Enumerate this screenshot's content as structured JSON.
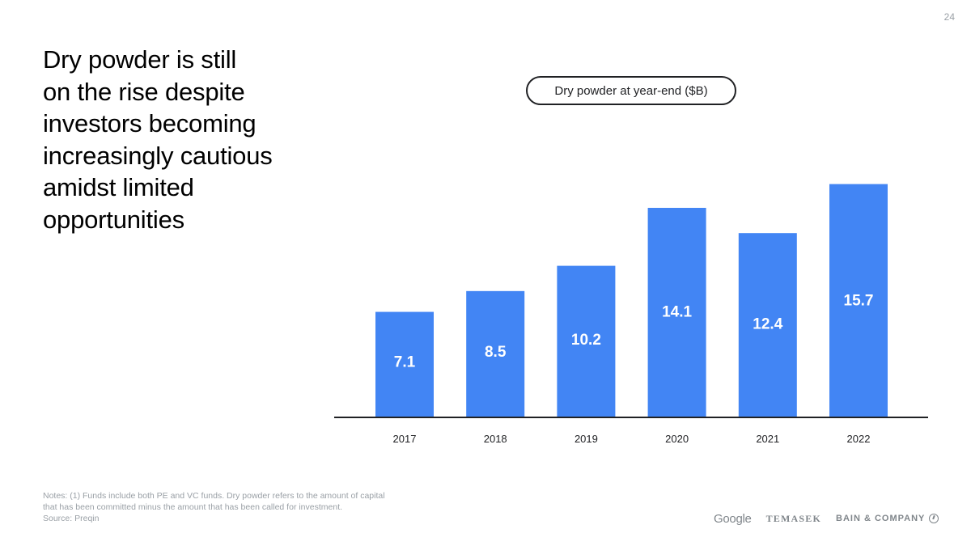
{
  "page_number": "24",
  "headline": "Dry powder is still\non the rise despite\ninvestors becoming\nincreasingly cautious\namidst limited\nopportunities",
  "legend_label": "Dry powder at year-end ($B)",
  "chart_data": {
    "type": "bar",
    "categories": [
      "2017",
      "2018",
      "2019",
      "2020",
      "2021",
      "2022"
    ],
    "values": [
      7.1,
      8.5,
      10.2,
      14.1,
      12.4,
      15.7
    ],
    "data_labels": [
      "7.1",
      "8.5",
      "10.2",
      "14.1",
      "12.4",
      "15.7"
    ],
    "title": "",
    "legend": "Dry powder at year-end ($B)",
    "xlabel": "",
    "ylabel": "",
    "ylim": [
      0,
      17.2
    ],
    "grid": false,
    "bar_color": "#4285F4",
    "label_color": "#ffffff"
  },
  "notes": [
    "Notes: (1) Funds include both PE and VC funds. Dry powder refers to the amount of capital",
    "that has been committed minus the amount that has been called for investment.",
    "Source: Preqin"
  ],
  "logos": {
    "google": "Google",
    "temasek": "TEMASEK",
    "bain": "BAIN & COMPANY"
  },
  "colors": {
    "accent": "#4285F4",
    "text": "#000000",
    "muted": "#9aa0a6"
  }
}
